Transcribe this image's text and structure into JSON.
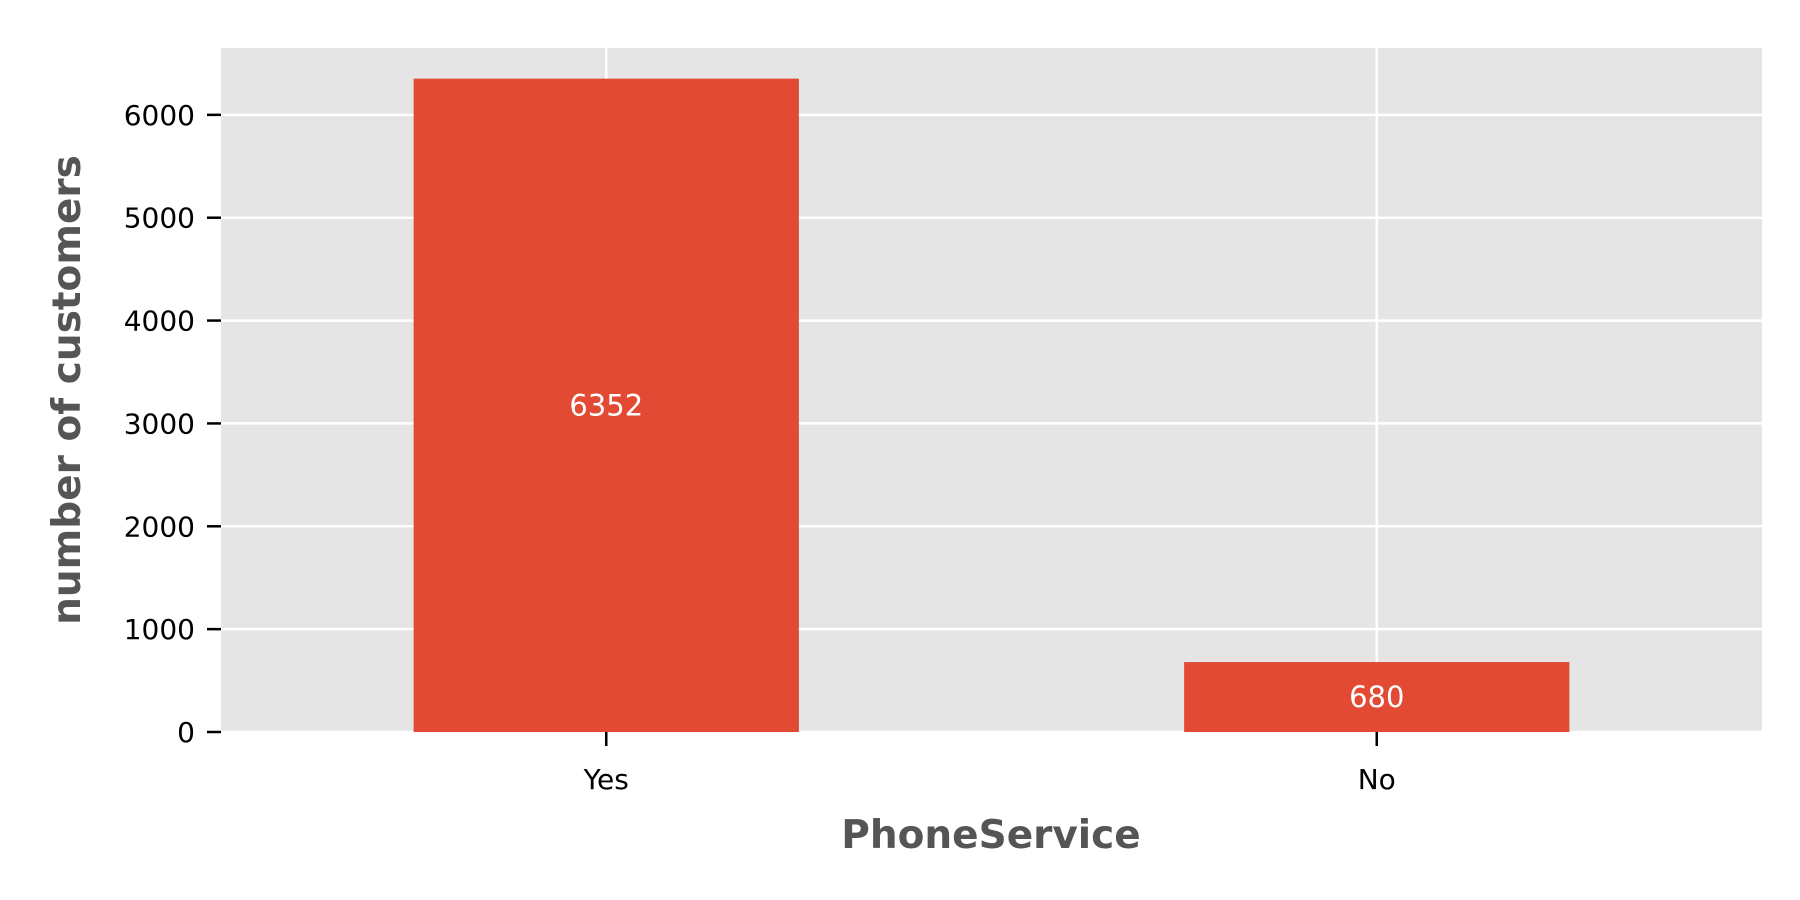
{
  "chart_data": {
    "type": "bar",
    "title": "",
    "xlabel": "PhoneService",
    "ylabel": "number of customers",
    "categories": [
      "Yes",
      "No"
    ],
    "values": [
      6352,
      680
    ],
    "data_labels": [
      "6352",
      "680"
    ],
    "ylim": [
      0,
      6650
    ],
    "yticks": [
      0,
      1000,
      2000,
      3000,
      4000,
      5000,
      6000
    ],
    "grid": true,
    "legend": "none",
    "colors": {
      "bar": "#E24A33",
      "plot_background": "#E5E5E5",
      "grid": "#FFFFFF",
      "axis_title": "#555555",
      "data_label": "#FFFFFF"
    }
  }
}
